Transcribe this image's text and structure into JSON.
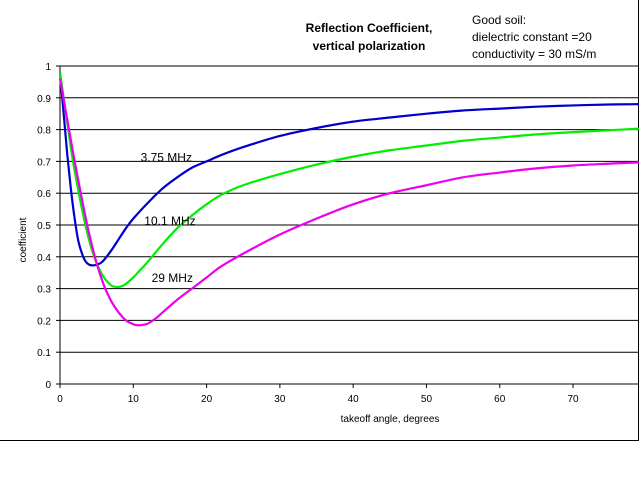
{
  "chart_data": {
    "type": "line",
    "title": [
      "Reflection Coefficient,",
      "vertical polarization"
    ],
    "note": [
      "Good soil:",
      "dielectric constant =20",
      "conductivity = 30 mS/m"
    ],
    "xlabel": "takeoff angle, degrees",
    "ylabel": "coefficient",
    "xlim": [
      0,
      79
    ],
    "ylim": [
      0,
      1
    ],
    "x_ticks": [
      0,
      10,
      20,
      30,
      40,
      50,
      60,
      70
    ],
    "y_ticks": [
      0,
      0.1,
      0.2,
      0.3,
      0.4,
      0.5,
      0.6,
      0.7,
      0.8,
      0.9,
      1
    ],
    "y_tick_labels": [
      "0",
      "0.1",
      "0.2",
      "0.3",
      "0.4",
      "0.5",
      "0.6",
      "0.7",
      "0.8",
      "0.9",
      "1"
    ],
    "grid": "horizontal",
    "series": [
      {
        "name": "3.75 MHz",
        "color": "#0000cc",
        "x": [
          0,
          0.5,
          1,
          1.5,
          2,
          2.5,
          3,
          3.5,
          4,
          4.5,
          5,
          5.5,
          6,
          7,
          8,
          9,
          10,
          12,
          14,
          16,
          18,
          20,
          22,
          25,
          30,
          35,
          40,
          45,
          50,
          55,
          60,
          65,
          70,
          75,
          79
        ],
        "y": [
          0.98,
          0.85,
          0.72,
          0.61,
          0.52,
          0.45,
          0.41,
          0.385,
          0.375,
          0.373,
          0.375,
          0.38,
          0.39,
          0.42,
          0.455,
          0.49,
          0.52,
          0.57,
          0.615,
          0.65,
          0.68,
          0.7,
          0.72,
          0.745,
          0.78,
          0.805,
          0.825,
          0.838,
          0.85,
          0.86,
          0.866,
          0.872,
          0.876,
          0.879,
          0.88
        ]
      },
      {
        "name": "10.1 MHz",
        "color": "#00ee00",
        "x": [
          0,
          0.5,
          1,
          1.5,
          2,
          3,
          4,
          5,
          6,
          7,
          7.5,
          8,
          8.5,
          9,
          10,
          11,
          12,
          14,
          16,
          18,
          20,
          22,
          25,
          30,
          35,
          40,
          45,
          50,
          55,
          60,
          65,
          70,
          75,
          79
        ],
        "y": [
          0.98,
          0.9,
          0.82,
          0.74,
          0.67,
          0.55,
          0.45,
          0.38,
          0.335,
          0.31,
          0.306,
          0.305,
          0.308,
          0.315,
          0.335,
          0.36,
          0.385,
          0.44,
          0.49,
          0.53,
          0.565,
          0.595,
          0.625,
          0.66,
          0.69,
          0.715,
          0.735,
          0.75,
          0.765,
          0.775,
          0.785,
          0.792,
          0.798,
          0.803
        ]
      },
      {
        "name": "29 MHz",
        "color": "#ee00ee",
        "x": [
          0,
          1,
          2,
          3,
          4,
          5,
          6,
          7,
          8,
          9,
          10,
          10.5,
          11,
          11.5,
          12,
          13,
          14,
          16,
          18,
          20,
          22,
          25,
          30,
          35,
          40,
          45,
          50,
          55,
          60,
          65,
          70,
          75,
          79
        ],
        "y": [
          0.96,
          0.83,
          0.7,
          0.58,
          0.47,
          0.38,
          0.31,
          0.26,
          0.225,
          0.2,
          0.188,
          0.185,
          0.185,
          0.187,
          0.19,
          0.205,
          0.225,
          0.265,
          0.3,
          0.335,
          0.37,
          0.41,
          0.47,
          0.52,
          0.565,
          0.6,
          0.625,
          0.65,
          0.665,
          0.678,
          0.687,
          0.693,
          0.697
        ]
      }
    ],
    "series_labels": [
      {
        "text": "3.75 MHz",
        "x": 11,
        "y": 0.7
      },
      {
        "text": "10.1 MHz",
        "x": 11.5,
        "y": 0.5
      },
      {
        "text": "29 MHz",
        "x": 12.5,
        "y": 0.32
      }
    ]
  }
}
